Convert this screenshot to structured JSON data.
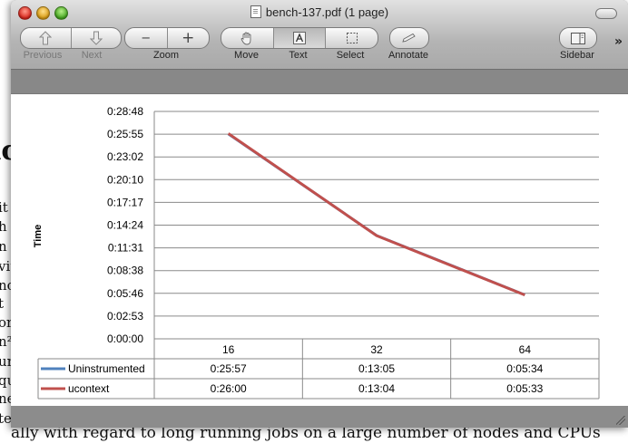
{
  "window": {
    "title": "bench-137.pdf (1 page)"
  },
  "toolbar": {
    "previous_label": "Previous",
    "next_label": "Next",
    "zoom_label": "Zoom",
    "zoom_out_symbol": "−",
    "zoom_in_symbol": "+",
    "move_label": "Move",
    "text_label": "Text",
    "select_label": "Select",
    "annotate_label": "Annotate",
    "sidebar_label": "Sidebar",
    "overflow_symbol": "»"
  },
  "background_document": {
    "heading_fragment": "ıc",
    "left_fragments": [
      "it",
      "h",
      "n l",
      "vit",
      "no",
      "t",
      "or",
      "n²",
      "un",
      "qu",
      "ne",
      "te"
    ],
    "bottom_line": "ally with regard to long running jobs on a large number of nodes and CPUs"
  },
  "chart_data": {
    "type": "line",
    "title": "",
    "xlabel": "",
    "ylabel": "Time",
    "categories": [
      "16",
      "32",
      "64"
    ],
    "y_ticks": [
      "0:00:00",
      "0:02:53",
      "0:05:46",
      "0:08:38",
      "0:11:31",
      "0:14:24",
      "0:17:17",
      "0:20:10",
      "0:23:02",
      "0:25:55",
      "0:28:48"
    ],
    "ylim_seconds": [
      0,
      1728
    ],
    "series": [
      {
        "name": "Uninstrumented",
        "color": "#4f81bd",
        "values": [
          "0:25:57",
          "0:13:05",
          "0:05:34"
        ],
        "values_seconds": [
          1557,
          785,
          334
        ]
      },
      {
        "name": "ucontext",
        "color": "#c0504d",
        "values": [
          "0:26:00",
          "0:13:04",
          "0:05:33"
        ],
        "values_seconds": [
          1560,
          784,
          333
        ]
      }
    ],
    "grid": true,
    "legend": "data table below x-axis"
  }
}
